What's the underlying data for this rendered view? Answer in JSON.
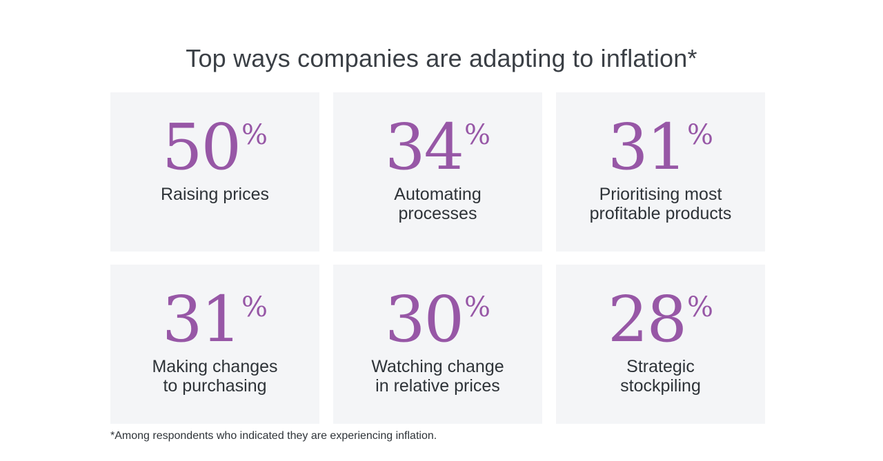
{
  "title": "Top ways companies are adapting to inflation*",
  "accent_color": "#9757a6",
  "card_background": "#f4f5f7",
  "cards": [
    {
      "value": "50",
      "unit": "%",
      "label_lines": [
        "Raising prices"
      ]
    },
    {
      "value": "34",
      "unit": "%",
      "label_lines": [
        "Automating",
        "processes"
      ]
    },
    {
      "value": "31",
      "unit": "%",
      "label_lines": [
        "Prioritising most",
        "profitable products"
      ]
    },
    {
      "value": "31",
      "unit": "%",
      "label_lines": [
        "Making changes",
        "to purchasing"
      ]
    },
    {
      "value": "30",
      "unit": "%",
      "label_lines": [
        "Watching change",
        "in relative prices"
      ]
    },
    {
      "value": "28",
      "unit": "%",
      "label_lines": [
        "Strategic",
        "stockpiling"
      ]
    }
  ],
  "footnote": "*Among respondents who indicated they are experiencing inflation."
}
